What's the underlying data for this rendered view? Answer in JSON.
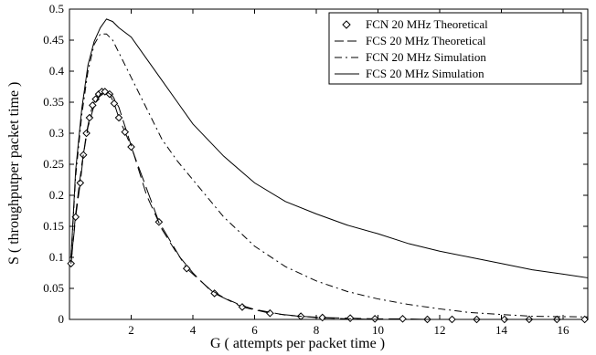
{
  "chart_data": {
    "type": "line",
    "title": "",
    "xlabel": "G     ( attempts per packet time )",
    "ylabel": "S   ( throughputper packet time )",
    "xlim": [
      0,
      16.8
    ],
    "ylim": [
      0,
      0.5
    ],
    "x_ticks": [
      2,
      4,
      6,
      8,
      10,
      12,
      14,
      16
    ],
    "x_tick_labels": [
      "2",
      "4",
      "6",
      "8",
      "10",
      "12",
      "14",
      "16"
    ],
    "y_ticks": [
      0,
      0.05,
      0.1,
      0.15,
      0.2,
      0.25,
      0.3,
      0.35,
      0.4,
      0.45,
      0.5
    ],
    "y_tick_labels": [
      "0",
      "0.05",
      "0.1",
      "0.15",
      "0.2",
      "0.25",
      "0.3",
      "0.35",
      "0.4",
      "0.45",
      "0.5"
    ],
    "grid": false,
    "legend_position": "top-right",
    "series": [
      {
        "name": "FCN 20 MHz Theoretical",
        "style": "diamond-markers",
        "color": "#000000",
        "x": [
          0.05,
          0.2,
          0.35,
          0.45,
          0.55,
          0.65,
          0.75,
          0.85,
          0.95,
          1.05,
          1.15,
          1.3,
          1.45,
          1.6,
          1.8,
          2.0,
          2.9,
          3.8,
          4.7,
          5.6,
          6.5,
          7.5,
          8.2,
          9.1,
          9.9,
          10.8,
          11.6,
          12.4,
          13.2,
          14.1,
          14.9,
          15.8,
          16.7
        ],
        "y": [
          0.09,
          0.165,
          0.22,
          0.265,
          0.3,
          0.325,
          0.345,
          0.355,
          0.363,
          0.367,
          0.367,
          0.363,
          0.348,
          0.325,
          0.302,
          0.278,
          0.157,
          0.082,
          0.042,
          0.02,
          0.01,
          0.005,
          0.003,
          0.002,
          0.001,
          0.001,
          0.0,
          0.0,
          0.0,
          0.0,
          0.0,
          0.0,
          0.0
        ]
      },
      {
        "name": "FCS 20 MHz Theoretical",
        "style": "dashed",
        "color": "#000000",
        "x": [
          0.05,
          0.2,
          0.4,
          0.6,
          0.8,
          1.0,
          1.2,
          1.4,
          1.6,
          2.0,
          2.5,
          3.0,
          3.5,
          4.0,
          4.5,
          5.0,
          5.5,
          6.0,
          7.0,
          8.0,
          9.0,
          10.0,
          12.0,
          14.0,
          16.8
        ],
        "y": [
          0.09,
          0.17,
          0.25,
          0.31,
          0.345,
          0.363,
          0.367,
          0.36,
          0.342,
          0.28,
          0.2,
          0.145,
          0.105,
          0.075,
          0.05,
          0.035,
          0.024,
          0.016,
          0.007,
          0.003,
          0.001,
          0.0,
          0.0,
          0.0,
          0.0
        ]
      },
      {
        "name": "FCN 20 MHz Simulation",
        "style": "dash-dot",
        "color": "#000000",
        "x": [
          0.05,
          0.2,
          0.4,
          0.6,
          0.8,
          1.0,
          1.2,
          1.4,
          1.6,
          2.0,
          2.5,
          3.0,
          3.5,
          4.0,
          5.0,
          6.0,
          7.0,
          8.0,
          9.0,
          10.0,
          11.0,
          12.0,
          13.0,
          14.0,
          15.0,
          16.8
        ],
        "y": [
          0.1,
          0.23,
          0.33,
          0.4,
          0.443,
          0.46,
          0.46,
          0.45,
          0.43,
          0.39,
          0.34,
          0.29,
          0.255,
          0.225,
          0.165,
          0.118,
          0.085,
          0.062,
          0.045,
          0.033,
          0.024,
          0.017,
          0.011,
          0.008,
          0.005,
          0.004
        ]
      },
      {
        "name": "FCS 20 MHz Simulation",
        "style": "solid",
        "color": "#000000",
        "x": [
          0.05,
          0.2,
          0.4,
          0.6,
          0.8,
          1.0,
          1.2,
          1.4,
          1.6,
          2.0,
          2.5,
          3.0,
          3.5,
          4.0,
          5.0,
          6.0,
          7.0,
          8.0,
          9.0,
          10.0,
          11.0,
          12.0,
          13.0,
          14.0,
          15.0,
          16.0,
          16.8
        ],
        "y": [
          0.1,
          0.24,
          0.34,
          0.41,
          0.448,
          0.47,
          0.484,
          0.48,
          0.47,
          0.455,
          0.42,
          0.385,
          0.35,
          0.315,
          0.263,
          0.22,
          0.19,
          0.17,
          0.152,
          0.138,
          0.122,
          0.11,
          0.1,
          0.09,
          0.08,
          0.073,
          0.067
        ]
      }
    ]
  }
}
